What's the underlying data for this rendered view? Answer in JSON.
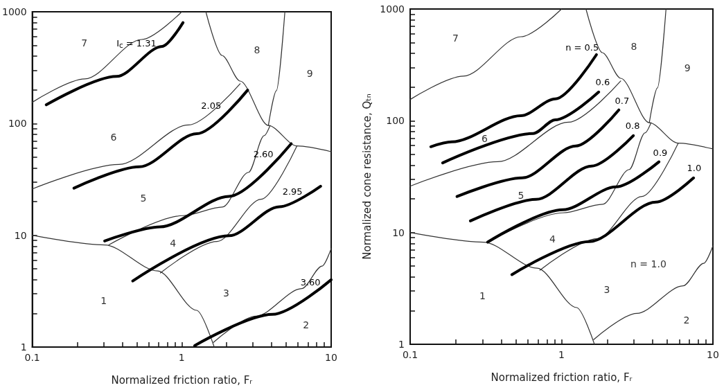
{
  "chart_data": [
    {
      "type": "line",
      "xlabel": "Normalized friction ratio, Fᵣ",
      "log": "xy",
      "legend": false,
      "grid": false,
      "marker": "none",
      "xlim": [
        0.1,
        10
      ],
      "ylim": [
        1,
        1000
      ],
      "xticks": [
        0.1,
        {
          "value": 0.2,
          "label": null
        },
        {
          "value": 0.3,
          "label": null
        },
        {
          "value": 0.4,
          "label": null
        },
        {
          "value": 0.5,
          "label": null
        },
        {
          "value": 0.6,
          "label": null
        },
        {
          "value": 0.7,
          "label": null
        },
        {
          "value": 0.8,
          "label": null
        },
        {
          "value": 0.9,
          "label": null
        },
        1,
        {
          "value": 2,
          "label": null
        },
        {
          "value": 3,
          "label": null
        },
        {
          "value": 4,
          "label": null
        },
        {
          "value": 5,
          "label": null
        },
        {
          "value": 6,
          "label": null
        },
        {
          "value": 7,
          "label": null
        },
        {
          "value": 8,
          "label": null
        },
        {
          "value": 9,
          "label": null
        },
        10
      ],
      "yticks": [
        1,
        {
          "value": 2,
          "label": null
        },
        {
          "value": 3,
          "label": null
        },
        {
          "value": 4,
          "label": null
        },
        {
          "value": 5,
          "label": null
        },
        {
          "value": 6,
          "label": null
        },
        {
          "value": 7,
          "label": null
        },
        {
          "value": 8,
          "label": null
        },
        {
          "value": 9,
          "label": null
        },
        10,
        {
          "value": 20,
          "label": null
        },
        {
          "value": 30,
          "label": null
        },
        {
          "value": 40,
          "label": null
        },
        {
          "value": 50,
          "label": null
        },
        {
          "value": 60,
          "label": null
        },
        {
          "value": 70,
          "label": null
        },
        {
          "value": 80,
          "label": null
        },
        {
          "value": 90,
          "label": null
        },
        100,
        {
          "value": 200,
          "label": null
        },
        {
          "value": 300,
          "label": null
        },
        {
          "value": 400,
          "label": null
        },
        {
          "value": 500,
          "label": null
        },
        {
          "value": 600,
          "label": null
        },
        {
          "value": 700,
          "label": null
        },
        {
          "value": 800,
          "label": null
        },
        {
          "value": 900,
          "label": null
        },
        1000
      ],
      "series": [
        {
          "name": "I$_{c}$ = 1.31",
          "color": "#000000",
          "x": [
            0.124,
            0.366,
            0.74,
            1.02
          ],
          "values": [
            147,
            264,
            490,
            800
          ]
        },
        {
          "name": "2.05",
          "color": "#000000",
          "x": [
            0.19,
            0.52,
            1.26,
            2.76
          ],
          "values": [
            26.4,
            41,
            81,
            199
          ]
        },
        {
          "name": "2.60",
          "color": "#000000",
          "x": [
            0.305,
            0.714,
            2.07,
            5.4
          ],
          "values": [
            8.9,
            11.9,
            22.3,
            66
          ]
        },
        {
          "name": "2.95",
          "color": "#000000",
          "x": [
            0.47,
            2.07,
            4.5,
            8.5
          ],
          "values": [
            3.9,
            9.9,
            18,
            27.5
          ]
        },
        {
          "name": "3.60",
          "color": "#000000",
          "x": [
            1.22,
            4.05,
            10
          ],
          "values": [
            1.03,
            1.96,
            4.0
          ]
        },
        {
          "color": "#333333",
          "x": [
            0.1,
            0.305,
            0.69,
            1.26,
            1.65
          ],
          "values": [
            10,
            8.2,
            4.8,
            2.13,
            1
          ]
        },
        {
          "color": "#333333",
          "x": [
            0.1,
            0.225,
            0.54,
            1.0
          ],
          "values": [
            155,
            251,
            565,
            1000
          ]
        },
        {
          "color": "#333333",
          "x": [
            0.1,
            0.38,
            1.11,
            2.46
          ],
          "values": [
            26,
            43,
            97,
            227
          ]
        },
        {
          "color": "#333333",
          "x": [
            0.325,
            1.02,
            1.87,
            2.8,
            3.56,
            3.9
          ],
          "values": [
            8.2,
            15,
            17.9,
            36.6,
            78,
            96
          ]
        },
        {
          "color": "#333333",
          "x": [
            0.72,
            1.72,
            3.4,
            5.9
          ],
          "values": [
            4.6,
            8.8,
            21,
            63
          ]
        },
        {
          "color": "#333333",
          "x": [
            1.63,
            3.14,
            6.35,
            8.7,
            10
          ],
          "values": [
            1.1,
            1.89,
            3.33,
            5.3,
            7.6
          ]
        },
        {
          "color": "#333333",
          "x": [
            1.45,
            1.86,
            2.46,
            3.8,
            5.9,
            10
          ],
          "values": [
            1000,
            407,
            240,
            96,
            63,
            56
          ]
        },
        {
          "color": "#333333",
          "x": [
            4.9,
            4.3,
            3.8
          ],
          "values": [
            1000,
            197,
            96
          ]
        }
      ],
      "annotations": [
        "7",
        "8",
        "9",
        "6",
        "5",
        "4",
        "1",
        "3",
        "2"
      ]
    },
    {
      "type": "line",
      "xlabel": "Normalized friction ratio, Fᵣ",
      "ylabel": "Normalized cone resistance, Qₜₙ",
      "log": "xy",
      "legend": false,
      "grid": false,
      "marker": "none",
      "xlim": [
        0.1,
        10
      ],
      "ylim": [
        1,
        1000
      ],
      "xticks": [
        0.1,
        {
          "value": 0.2,
          "label": null
        },
        {
          "value": 0.3,
          "label": null
        },
        {
          "value": 0.4,
          "label": null
        },
        {
          "value": 0.5,
          "label": null
        },
        {
          "value": 0.6,
          "label": null
        },
        {
          "value": 0.7,
          "label": null
        },
        {
          "value": 0.8,
          "label": null
        },
        {
          "value": 0.9,
          "label": null
        },
        1,
        {
          "value": 2,
          "label": null
        },
        {
          "value": 3,
          "label": null
        },
        {
          "value": 4,
          "label": null
        },
        {
          "value": 5,
          "label": null
        },
        {
          "value": 6,
          "label": null
        },
        {
          "value": 7,
          "label": null
        },
        {
          "value": 8,
          "label": null
        },
        {
          "value": 9,
          "label": null
        },
        10
      ],
      "yticks": [
        1,
        {
          "value": 2,
          "label": null
        },
        {
          "value": 3,
          "label": null
        },
        {
          "value": 4,
          "label": null
        },
        {
          "value": 5,
          "label": null
        },
        {
          "value": 6,
          "label": null
        },
        {
          "value": 7,
          "label": null
        },
        {
          "value": 8,
          "label": null
        },
        {
          "value": 9,
          "label": null
        },
        10,
        {
          "value": 20,
          "label": null
        },
        {
          "value": 30,
          "label": null
        },
        {
          "value": 40,
          "label": null
        },
        {
          "value": 50,
          "label": null
        },
        {
          "value": 60,
          "label": null
        },
        {
          "value": 70,
          "label": null
        },
        {
          "value": 80,
          "label": null
        },
        {
          "value": 90,
          "label": null
        },
        100,
        {
          "value": 200,
          "label": null
        },
        {
          "value": 300,
          "label": null
        },
        {
          "value": 400,
          "label": null
        },
        {
          "value": 500,
          "label": null
        },
        {
          "value": 600,
          "label": null
        },
        {
          "value": 700,
          "label": null
        },
        {
          "value": 800,
          "label": null
        },
        {
          "value": 900,
          "label": null
        },
        1000
      ],
      "series": [
        {
          "name": "n = 0.5",
          "color": "#000000",
          "x": [
            0.137,
            0.188,
            0.54,
            0.91,
            1.7
          ],
          "values": [
            58.6,
            64.7,
            111,
            157,
            390
          ]
        },
        {
          "name": "0.6",
          "color": "#000000",
          "x": [
            0.164,
            0.65,
            0.91,
            1.76
          ],
          "values": [
            42,
            77,
            102,
            181
          ]
        },
        {
          "name": "0.7",
          "color": "#000000",
          "x": [
            0.204,
            0.55,
            1.24,
            2.39
          ],
          "values": [
            21,
            30.8,
            59.4,
            125
          ]
        },
        {
          "name": "0.8",
          "color": "#000000",
          "x": [
            0.25,
            0.68,
            1.58,
            2.98
          ],
          "values": [
            12.7,
            19.8,
            39.3,
            73.6
          ]
        },
        {
          "name": "0.9",
          "color": "#000000",
          "x": [
            0.325,
            1.02,
            2.29,
            4.4
          ],
          "values": [
            8.2,
            16,
            25.6,
            42.9
          ]
        },
        {
          "name": "1.0",
          "color": "#000000",
          "x": [
            0.47,
            1.53,
            4.2,
            7.45
          ],
          "values": [
            4.2,
            8.3,
            18.7,
            30.8
          ]
        },
        {
          "color": "#333333",
          "x": [
            0.1,
            0.305,
            0.69,
            1.26,
            1.65
          ],
          "values": [
            10,
            8.2,
            4.8,
            2.13,
            1
          ]
        },
        {
          "color": "#333333",
          "x": [
            0.1,
            0.225,
            0.54,
            1.0
          ],
          "values": [
            155,
            251,
            565,
            1000
          ]
        },
        {
          "color": "#333333",
          "x": [
            0.1,
            0.38,
            1.11,
            2.46
          ],
          "values": [
            26,
            43,
            97,
            227
          ]
        },
        {
          "color": "#333333",
          "x": [
            0.325,
            1.02,
            1.87,
            2.8,
            3.56,
            3.9
          ],
          "values": [
            8.2,
            15,
            17.9,
            36.6,
            78,
            96
          ]
        },
        {
          "color": "#333333",
          "x": [
            0.72,
            1.72,
            3.4,
            5.9
          ],
          "values": [
            4.6,
            8.8,
            21,
            63
          ]
        },
        {
          "color": "#333333",
          "x": [
            1.63,
            3.14,
            6.35,
            8.7,
            10
          ],
          "values": [
            1.1,
            1.89,
            3.33,
            5.3,
            7.6
          ]
        },
        {
          "color": "#333333",
          "x": [
            1.45,
            1.86,
            2.46,
            3.8,
            5.9,
            10
          ],
          "values": [
            1000,
            407,
            240,
            96,
            63,
            56
          ]
        },
        {
          "color": "#333333",
          "x": [
            4.9,
            4.3,
            3.8
          ],
          "values": [
            1000,
            197,
            96
          ]
        }
      ],
      "annotations": [
        "7",
        "8",
        "9",
        "6",
        "5",
        "4",
        "1",
        "3",
        "2",
        "n = 1.0"
      ]
    }
  ]
}
